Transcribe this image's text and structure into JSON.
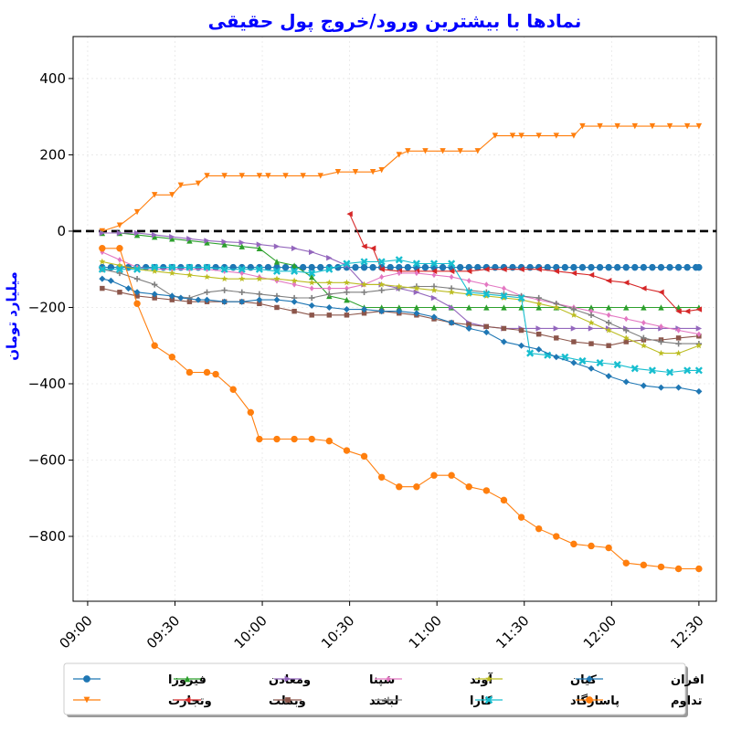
{
  "chart_data": {
    "type": "line",
    "title": "نمادها با بیشترین ورود/خروج پول حقیقی",
    "xlabel": "",
    "ylabel": "میلیارد تومان",
    "xlim": [
      "08:55",
      "12:36"
    ],
    "ylim": [
      -970,
      510
    ],
    "x_ticks": [
      "09:00",
      "09:30",
      "10:00",
      "10:30",
      "11:00",
      "11:30",
      "12:00",
      "12:30"
    ],
    "y_ticks": [
      400,
      200,
      0,
      -200,
      -400,
      -600,
      -800
    ],
    "y_tick_labels": [
      "400",
      "200",
      "0",
      "−200",
      "−400",
      "−600",
      "−800"
    ],
    "zero_line": {
      "value": 0,
      "style": "dashed",
      "color": "#000000"
    },
    "grid": true,
    "legend": {
      "position": "bottom",
      "columns": 6
    },
    "series": [
      {
        "name": "فیروزا",
        "color": "#1f77b4",
        "marker": "circle",
        "x": [
          "09:05",
          "09:08",
          "09:11",
          "09:14",
          "09:17",
          "09:20",
          "09:23",
          "09:26",
          "09:29",
          "09:32",
          "09:35",
          "09:38",
          "09:41",
          "09:44",
          "09:47",
          "09:50",
          "09:53",
          "09:56",
          "09:59",
          "10:02",
          "10:05",
          "10:08",
          "10:11",
          "10:14",
          "10:17",
          "10:20",
          "10:23",
          "10:26",
          "10:29",
          "10:32",
          "10:35",
          "10:38",
          "10:41",
          "10:44",
          "10:47",
          "10:50",
          "10:53",
          "10:56",
          "10:59",
          "11:02",
          "11:05",
          "11:08",
          "11:11",
          "11:14",
          "11:17",
          "11:20",
          "11:23",
          "11:26",
          "11:29",
          "11:32",
          "11:35",
          "11:38",
          "11:41",
          "11:44",
          "11:47",
          "11:50",
          "11:53",
          "11:56",
          "11:59",
          "12:02",
          "12:05",
          "12:08",
          "12:11",
          "12:14",
          "12:17",
          "12:20",
          "12:23",
          "12:26",
          "12:29",
          "12:30"
        ],
        "y": [
          -95,
          -95,
          -95,
          -95,
          -95,
          -95,
          -95,
          -95,
          -95,
          -95,
          -95,
          -95,
          -95,
          -95,
          -95,
          -95,
          -95,
          -95,
          -95,
          -95,
          -95,
          -95,
          -95,
          -95,
          -95,
          -95,
          -95,
          -95,
          -95,
          -95,
          -95,
          -95,
          -95,
          -95,
          -95,
          -95,
          -95,
          -95,
          -95,
          -95,
          -95,
          -95,
          -95,
          -95,
          -95,
          -95,
          -95,
          -95,
          -95,
          -95,
          -95,
          -95,
          -95,
          -95,
          -95,
          -95,
          -95,
          -95,
          -95,
          -95,
          -95,
          -95,
          -95,
          -95,
          -95,
          -95,
          -95,
          -95,
          -95,
          -95
        ]
      },
      {
        "name": "وتجارت",
        "color": "#ff7f0e",
        "marker": "triangle_down",
        "x": [
          "09:05",
          "09:11",
          "09:17",
          "09:23",
          "09:29",
          "09:32",
          "09:38",
          "09:41",
          "09:47",
          "09:53",
          "09:59",
          "10:02",
          "10:08",
          "10:14",
          "10:20",
          "10:26",
          "10:32",
          "10:38",
          "10:41",
          "10:47",
          "10:50",
          "10:56",
          "11:02",
          "11:08",
          "11:14",
          "11:20",
          "11:26",
          "11:29",
          "11:35",
          "11:41",
          "11:47",
          "11:50",
          "11:56",
          "12:02",
          "12:08",
          "12:14",
          "12:20",
          "12:26",
          "12:30"
        ],
        "y": [
          0,
          15,
          50,
          95,
          95,
          120,
          125,
          145,
          145,
          145,
          145,
          145,
          145,
          145,
          145,
          155,
          155,
          155,
          160,
          200,
          210,
          210,
          210,
          210,
          210,
          250,
          250,
          250,
          250,
          250,
          250,
          275,
          275,
          275,
          275,
          275,
          275,
          275,
          275
        ]
      },
      {
        "name": "ومعادن",
        "color": "#2ca02c",
        "marker": "triangle_up",
        "x": [
          "09:05",
          "09:11",
          "09:17",
          "09:23",
          "09:29",
          "09:35",
          "09:41",
          "09:47",
          "09:53",
          "09:59",
          "10:05",
          "10:11",
          "10:17",
          "10:23",
          "10:29",
          "10:35",
          "10:41",
          "10:47",
          "10:53",
          "10:59",
          "11:05",
          "11:11",
          "11:17",
          "11:23",
          "11:29",
          "11:35",
          "11:41",
          "11:47",
          "11:53",
          "11:59",
          "12:05",
          "12:11",
          "12:17",
          "12:23",
          "12:30"
        ],
        "y": [
          -5,
          -5,
          -10,
          -15,
          -20,
          -25,
          -30,
          -35,
          -40,
          -45,
          -80,
          -90,
          -120,
          -170,
          -180,
          -200,
          -200,
          -200,
          -200,
          -200,
          -200,
          -200,
          -200,
          -200,
          -200,
          -200,
          -200,
          -200,
          -200,
          -200,
          -200,
          -200,
          -200,
          -200,
          -200
        ]
      },
      {
        "name": "وبملت",
        "color": "#d62728",
        "marker": "triangle_left",
        "x": [
          "10:30",
          "10:35",
          "10:38",
          "10:41",
          "10:47",
          "10:53",
          "10:59",
          "11:05",
          "11:11",
          "11:17",
          "11:23",
          "11:29",
          "11:35",
          "11:41",
          "11:47",
          "11:53",
          "11:59",
          "12:05",
          "12:11",
          "12:17",
          "12:23",
          "12:26",
          "12:30"
        ],
        "y": [
          45,
          -40,
          -45,
          -100,
          -105,
          -105,
          -105,
          -105,
          -105,
          -100,
          -100,
          -100,
          -100,
          -105,
          -110,
          -115,
          -130,
          -135,
          -150,
          -160,
          -210,
          -210,
          -205
        ]
      },
      {
        "name": "شپنا",
        "color": "#9467bd",
        "marker": "triangle_right",
        "x": [
          "09:05",
          "09:11",
          "09:17",
          "09:23",
          "09:29",
          "09:35",
          "09:41",
          "09:47",
          "09:53",
          "09:59",
          "10:05",
          "10:11",
          "10:17",
          "10:23",
          "10:29",
          "10:35",
          "10:41",
          "10:47",
          "10:53",
          "10:59",
          "11:05",
          "11:11",
          "11:17",
          "11:23",
          "11:29",
          "11:35",
          "11:41",
          "11:47",
          "11:53",
          "11:59",
          "12:05",
          "12:11",
          "12:17",
          "12:23",
          "12:30"
        ],
        "y": [
          -5,
          -5,
          -5,
          -10,
          -15,
          -20,
          -25,
          -28,
          -30,
          -35,
          -40,
          -45,
          -55,
          -70,
          -90,
          -140,
          -140,
          -150,
          -160,
          -175,
          -200,
          -240,
          -250,
          -255,
          -255,
          -255,
          -255,
          -255,
          -255,
          -255,
          -255,
          -255,
          -255,
          -255,
          -255
        ]
      },
      {
        "name": "لبخند",
        "color": "#8c564b",
        "marker": "square",
        "x": [
          "09:05",
          "09:11",
          "09:17",
          "09:23",
          "09:29",
          "09:35",
          "09:41",
          "09:47",
          "09:53",
          "09:59",
          "10:05",
          "10:11",
          "10:17",
          "10:23",
          "10:29",
          "10:35",
          "10:41",
          "10:47",
          "10:53",
          "10:59",
          "11:05",
          "11:11",
          "11:17",
          "11:23",
          "11:29",
          "11:35",
          "11:41",
          "11:47",
          "11:53",
          "11:59",
          "12:05",
          "12:11",
          "12:17",
          "12:23",
          "12:30"
        ],
        "y": [
          -150,
          -160,
          -170,
          -175,
          -180,
          -185,
          -185,
          -185,
          -185,
          -190,
          -200,
          -210,
          -220,
          -220,
          -220,
          -215,
          -210,
          -215,
          -220,
          -230,
          -240,
          -245,
          -250,
          -255,
          -260,
          -270,
          -280,
          -290,
          -295,
          -300,
          -290,
          -285,
          -285,
          -280,
          -275
        ]
      },
      {
        "name": "آوند",
        "color": "#e377c2",
        "marker": "diamond",
        "x": [
          "09:05",
          "09:11",
          "09:17",
          "09:23",
          "09:29",
          "09:35",
          "09:41",
          "09:47",
          "09:53",
          "09:59",
          "10:05",
          "10:11",
          "10:17",
          "10:23",
          "10:29",
          "10:35",
          "10:41",
          "10:47",
          "10:53",
          "10:59",
          "11:05",
          "11:11",
          "11:17",
          "11:23",
          "11:29",
          "11:35",
          "11:41",
          "11:47",
          "11:53",
          "11:59",
          "12:05",
          "12:11",
          "12:17",
          "12:23",
          "12:30"
        ],
        "y": [
          -55,
          -75,
          -95,
          -100,
          -100,
          -100,
          -100,
          -105,
          -110,
          -120,
          -130,
          -140,
          -150,
          -150,
          -150,
          -140,
          -120,
          -110,
          -110,
          -115,
          -120,
          -130,
          -140,
          -150,
          -170,
          -180,
          -190,
          -200,
          -210,
          -220,
          -230,
          -240,
          -250,
          -260,
          -270
        ]
      },
      {
        "name": "کارا",
        "color": "#7f7f7f",
        "marker": "plus",
        "x": [
          "09:05",
          "09:11",
          "09:17",
          "09:23",
          "09:29",
          "09:35",
          "09:41",
          "09:47",
          "09:53",
          "09:59",
          "10:05",
          "10:11",
          "10:17",
          "10:23",
          "10:29",
          "10:35",
          "10:41",
          "10:47",
          "10:53",
          "10:59",
          "11:05",
          "11:11",
          "11:17",
          "11:23",
          "11:29",
          "11:35",
          "11:41",
          "11:47",
          "11:53",
          "11:59",
          "12:05",
          "12:11",
          "12:17",
          "12:23",
          "12:30"
        ],
        "y": [
          -100,
          -110,
          -125,
          -140,
          -170,
          -175,
          -160,
          -155,
          -160,
          -165,
          -170,
          -175,
          -175,
          -165,
          -160,
          -160,
          -155,
          -150,
          -145,
          -145,
          -150,
          -155,
          -160,
          -165,
          -170,
          -175,
          -190,
          -205,
          -220,
          -240,
          -260,
          -280,
          -290,
          -295,
          -295
        ]
      },
      {
        "name": "کیان",
        "color": "#bcbd22",
        "marker": "star",
        "x": [
          "09:05",
          "09:11",
          "09:17",
          "09:23",
          "09:29",
          "09:35",
          "09:41",
          "09:47",
          "09:53",
          "09:59",
          "10:05",
          "10:11",
          "10:17",
          "10:23",
          "10:29",
          "10:35",
          "10:41",
          "10:47",
          "10:53",
          "10:59",
          "11:05",
          "11:11",
          "11:17",
          "11:23",
          "11:29",
          "11:35",
          "11:41",
          "11:47",
          "11:53",
          "11:59",
          "12:05",
          "12:11",
          "12:17",
          "12:23",
          "12:30"
        ],
        "y": [
          -80,
          -90,
          -100,
          -105,
          -110,
          -115,
          -120,
          -125,
          -125,
          -125,
          -125,
          -130,
          -135,
          -135,
          -135,
          -140,
          -140,
          -145,
          -150,
          -155,
          -160,
          -165,
          -170,
          -175,
          -180,
          -190,
          -200,
          -220,
          -240,
          -260,
          -280,
          -300,
          -320,
          -320,
          -300
        ]
      },
      {
        "name": "پاسارگاد",
        "color": "#17becf",
        "marker": "x_square",
        "x": [
          "09:05",
          "09:11",
          "09:17",
          "09:23",
          "09:29",
          "09:35",
          "09:41",
          "09:47",
          "09:53",
          "09:59",
          "10:05",
          "10:11",
          "10:17",
          "10:23",
          "10:29",
          "10:35",
          "10:41",
          "10:47",
          "10:53",
          "10:59",
          "11:05",
          "11:11",
          "11:17",
          "11:23",
          "11:29",
          "11:32",
          "11:38",
          "11:44",
          "11:50",
          "11:56",
          "12:02",
          "12:08",
          "12:14",
          "12:20",
          "12:26",
          "12:30"
        ],
        "y": [
          -100,
          -100,
          -100,
          -95,
          -95,
          -95,
          -95,
          -100,
          -100,
          -100,
          -105,
          -105,
          -110,
          -100,
          -85,
          -80,
          -80,
          -75,
          -85,
          -85,
          -85,
          -160,
          -165,
          -170,
          -175,
          -320,
          -325,
          -330,
          -340,
          -345,
          -350,
          -360,
          -365,
          -370,
          -365,
          -365
        ]
      },
      {
        "name": "افران",
        "color": "#1f77b4",
        "marker": "diamond_thick",
        "x": [
          "09:05",
          "09:08",
          "09:14",
          "09:17",
          "09:23",
          "09:29",
          "09:32",
          "09:38",
          "09:41",
          "09:47",
          "09:53",
          "09:59",
          "10:05",
          "10:11",
          "10:17",
          "10:23",
          "10:29",
          "10:35",
          "10:41",
          "10:47",
          "10:53",
          "10:59",
          "11:05",
          "11:11",
          "11:17",
          "11:23",
          "11:29",
          "11:35",
          "11:41",
          "11:47",
          "11:53",
          "11:59",
          "12:05",
          "12:11",
          "12:17",
          "12:23",
          "12:30"
        ],
        "y": [
          -125,
          -130,
          -150,
          -160,
          -165,
          -170,
          -175,
          -180,
          -180,
          -185,
          -185,
          -180,
          -180,
          -185,
          -195,
          -200,
          -205,
          -205,
          -210,
          -210,
          -215,
          -225,
          -240,
          -255,
          -265,
          -290,
          -300,
          -310,
          -330,
          -345,
          -360,
          -380,
          -395,
          -405,
          -410,
          -410,
          -420
        ]
      },
      {
        "name": "تداوم",
        "color": "#ff7f0e",
        "marker": "circle",
        "x": [
          "09:05",
          "09:11",
          "09:17",
          "09:23",
          "09:29",
          "09:35",
          "09:41",
          "09:44",
          "09:50",
          "09:56",
          "09:59",
          "10:05",
          "10:11",
          "10:17",
          "10:23",
          "10:29",
          "10:35",
          "10:41",
          "10:47",
          "10:53",
          "10:59",
          "11:05",
          "11:11",
          "11:17",
          "11:23",
          "11:29",
          "11:35",
          "11:41",
          "11:47",
          "11:53",
          "11:59",
          "12:05",
          "12:11",
          "12:17",
          "12:23",
          "12:30"
        ],
        "y": [
          -45,
          -45,
          -190,
          -300,
          -330,
          -370,
          -370,
          -375,
          -415,
          -475,
          -545,
          -545,
          -545,
          -545,
          -550,
          -575,
          -590,
          -645,
          -670,
          -670,
          -640,
          -640,
          -670,
          -680,
          -705,
          -750,
          -780,
          -800,
          -820,
          -825,
          -830,
          -870,
          -875,
          -880,
          -885,
          -885
        ]
      }
    ]
  }
}
